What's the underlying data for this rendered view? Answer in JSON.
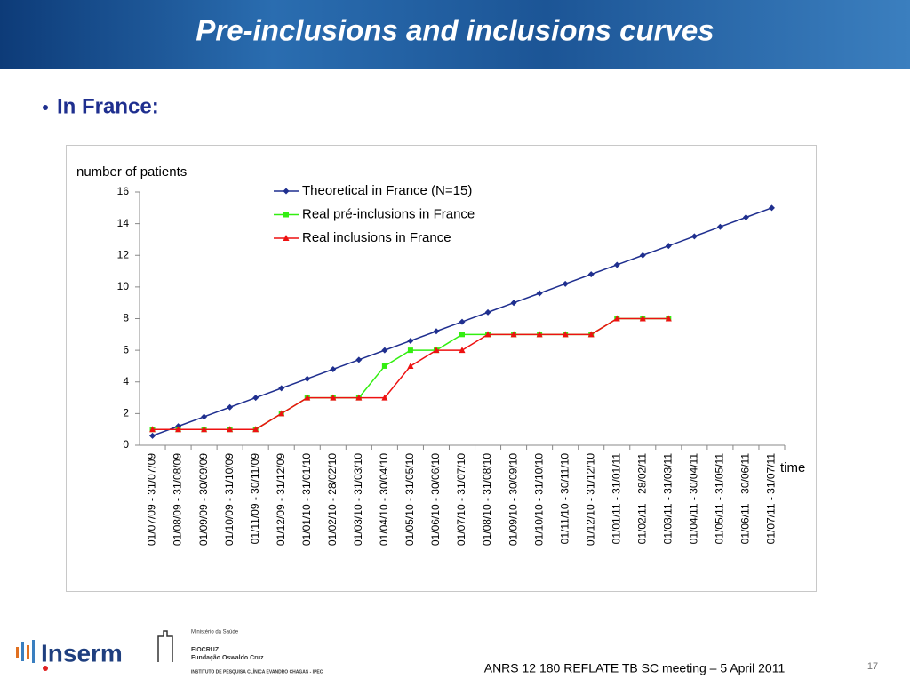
{
  "slide_title": "Pre-inclusions and inclusions curves",
  "subtitle": "In France:",
  "footer": "ANRS 12 180 REFLATE TB SC meeting – 5 April 2011",
  "page_number": "17",
  "logos": {
    "inserm": "Inserm",
    "ministry": "Ministério da Saúde",
    "fiocruz": "FIOCRUZ",
    "fiocruz_full": "Fundação Oswaldo Cruz",
    "institute": "INSTITUTO DE PESQUISA CLÍNICA EVANDRO CHAGAS - IPEC"
  },
  "chart_data": {
    "type": "line",
    "y_label": "number of patients",
    "x_label": "time",
    "categories": [
      "01/07/09 - 31/07/09",
      "01/08/09 - 31/08/09",
      "01/09/09 - 30/09/09",
      "01/10/09 - 31/10/09",
      "01/11/09 - 30/11/09",
      "01/12/09 - 31/12/09",
      "01/01/10 - 31/01/10",
      "01/02/10 - 28/02/10",
      "01/03/10 - 31/03/10",
      "01/04/10 - 30/04/10",
      "01/05/10 - 31/05/10",
      "01/06/10 - 30/06/10",
      "01/07/10 - 31/07/10",
      "01/08/10 - 31/08/10",
      "01/09/10 - 30/09/10",
      "01/10/10 - 31/10/10",
      "01/11/10 - 30/11/10",
      "01/12/10 - 31/12/10",
      "01/01/11 - 31/01/11",
      "01/02/11 - 28/02/11",
      "01/03/11 - 31/03/11",
      "01/04/11 - 30/04/11",
      "01/05/11 - 31/05/11",
      "01/06/11 - 30/06/11",
      "01/07/11 - 31/07/11"
    ],
    "series": [
      {
        "name": "Theoretical in France (N=15)",
        "color": "#1f2f8f",
        "marker": "diamond",
        "values": [
          0.6,
          1.2,
          1.8,
          2.4,
          3.0,
          3.6,
          4.2,
          4.8,
          5.4,
          6.0,
          6.6,
          7.2,
          7.8,
          8.4,
          9.0,
          9.6,
          10.2,
          10.8,
          11.4,
          12.0,
          12.6,
          13.2,
          13.8,
          14.4,
          15.0
        ]
      },
      {
        "name": "Real pré-inclusions in France",
        "color": "#33ee11",
        "marker": "square",
        "values": [
          1,
          1,
          1,
          1,
          1,
          2,
          3,
          3,
          3,
          5,
          6,
          6,
          7,
          7,
          7,
          7,
          7,
          7,
          8,
          8,
          8,
          null,
          null,
          null,
          null
        ]
      },
      {
        "name": "Real inclusions in France",
        "color": "#ee1111",
        "marker": "triangle",
        "values": [
          1,
          1,
          1,
          1,
          1,
          2,
          3,
          3,
          3,
          3,
          5,
          6,
          6,
          7,
          7,
          7,
          7,
          7,
          8,
          8,
          8,
          null,
          null,
          null,
          null
        ]
      }
    ],
    "ylim": [
      0,
      16
    ],
    "yticks": [
      0,
      2,
      4,
      6,
      8,
      10,
      12,
      14,
      16
    ]
  }
}
